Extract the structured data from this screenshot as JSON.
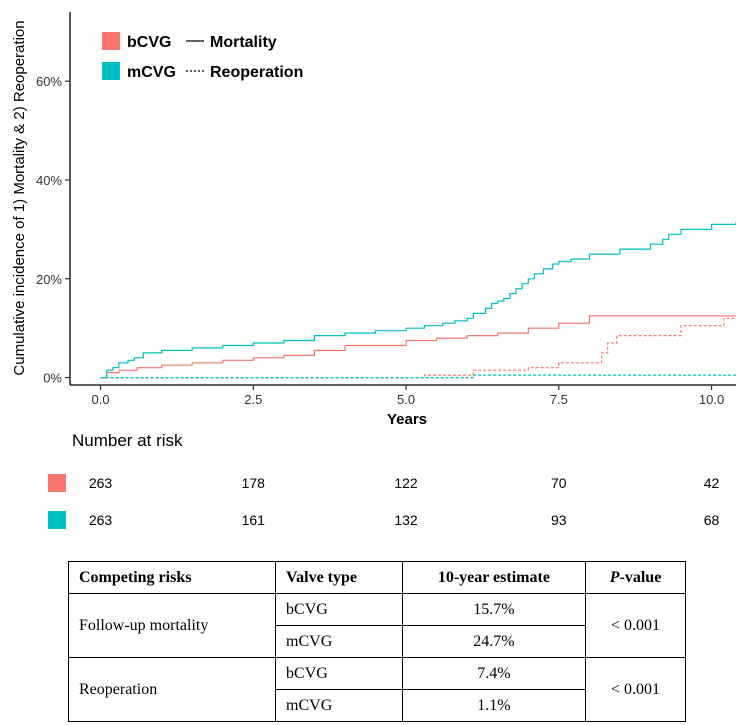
{
  "chart_data": {
    "type": "line",
    "ylabel": "Cumulative incidence of 1) Mortality & 2) Reoperation",
    "xlabel": "Years",
    "xlim": [
      -0.5,
      10.4
    ],
    "ylim": [
      -1.5,
      74
    ],
    "x_ticks": [
      0.0,
      2.5,
      5.0,
      7.5,
      10.0
    ],
    "x_tick_labels": [
      "0.0",
      "2.5",
      "5.0",
      "7.5",
      "10.0"
    ],
    "y_ticks": [
      0,
      20,
      40,
      60
    ],
    "y_tick_labels": [
      "0%",
      "20%",
      "40%",
      "60%"
    ],
    "grid": false,
    "legend_position": "top-left",
    "legend": {
      "groups": [
        {
          "label": "bCVG",
          "color": "#F8766D"
        },
        {
          "label": "mCVG",
          "color": "#00BFC4"
        }
      ],
      "linetypes": [
        {
          "label": "Mortality",
          "style": "solid"
        },
        {
          "label": "Reoperation",
          "style": "dashed"
        }
      ]
    },
    "series": [
      {
        "group": "bCVG",
        "endpoint": "Mortality",
        "color": "#F8766D",
        "style": "solid",
        "x": [
          0.0,
          0.1,
          0.3,
          0.6,
          1.0,
          1.5,
          2.0,
          2.5,
          3.0,
          3.5,
          4.0,
          5.0,
          5.5,
          6.0,
          6.5,
          7.0,
          7.5,
          8.0,
          10.4
        ],
        "y": [
          0.0,
          1.0,
          1.5,
          2.0,
          2.5,
          3.0,
          3.5,
          4.0,
          4.5,
          5.5,
          6.5,
          7.5,
          8.0,
          8.5,
          9.0,
          10.0,
          11.0,
          12.5,
          12.5
        ]
      },
      {
        "group": "mCVG",
        "endpoint": "Mortality",
        "color": "#00BFC4",
        "style": "solid",
        "x": [
          0.0,
          0.1,
          0.2,
          0.3,
          0.45,
          0.55,
          0.7,
          1.0,
          1.5,
          2.0,
          2.5,
          3.0,
          3.5,
          4.0,
          4.5,
          5.0,
          5.3,
          5.6,
          5.8,
          6.0,
          6.1,
          6.3,
          6.4,
          6.5,
          6.6,
          6.7,
          6.8,
          6.9,
          7.0,
          7.1,
          7.25,
          7.4,
          7.5,
          7.7,
          8.0,
          8.5,
          9.0,
          9.2,
          9.3,
          9.5,
          10.0,
          10.4
        ],
        "y": [
          0.0,
          1.5,
          2.0,
          3.0,
          3.5,
          4.0,
          5.0,
          5.5,
          6.0,
          6.5,
          7.0,
          7.5,
          8.5,
          9.0,
          9.5,
          10.0,
          10.5,
          11.0,
          11.5,
          12.0,
          13.0,
          14.0,
          15.0,
          15.5,
          16.0,
          17.0,
          18.0,
          19.0,
          20.0,
          21.0,
          22.0,
          23.0,
          23.5,
          24.0,
          25.0,
          26.0,
          27.0,
          28.0,
          29.0,
          30.0,
          31.0,
          31.5
        ]
      },
      {
        "group": "bCVG",
        "endpoint": "Reoperation",
        "color": "#F8766D",
        "style": "dashed",
        "x": [
          0.0,
          5.3,
          6.1,
          7.0,
          7.5,
          8.0,
          8.2,
          8.3,
          8.45,
          8.55,
          9.5,
          9.8,
          10.2,
          10.4
        ],
        "y": [
          0.0,
          0.5,
          1.5,
          2.0,
          3.0,
          3.0,
          5.0,
          7.0,
          8.5,
          8.5,
          10.5,
          10.5,
          12.0,
          12.0
        ]
      },
      {
        "group": "mCVG",
        "endpoint": "Reoperation",
        "color": "#00BFC4",
        "style": "dashed",
        "x": [
          0.0,
          6.1,
          10.4
        ],
        "y": [
          0.0,
          0.5,
          0.8
        ]
      }
    ],
    "number_at_risk": {
      "title": "Number at risk",
      "rows": [
        {
          "group": "bCVG",
          "color": "#F8766D",
          "values": [
            "263",
            "178",
            "122",
            "70",
            "42"
          ]
        },
        {
          "group": "mCVG",
          "color": "#00BFC4",
          "values": [
            "263",
            "161",
            "132",
            "93",
            "68"
          ]
        }
      ]
    }
  },
  "table": {
    "headers": {
      "competing_risks": "Competing risks",
      "valve_type": "Valve type",
      "estimate": "10-year estimate",
      "p_value_italic": "P",
      "p_value_rest": "-value"
    },
    "rows": [
      {
        "risk": "Follow-up mortality",
        "p_value": "< 0.001",
        "items": [
          {
            "valve": "bCVG",
            "estimate": "15.7%"
          },
          {
            "valve": "mCVG",
            "estimate": "24.7%"
          }
        ]
      },
      {
        "risk": "Reoperation",
        "p_value": "< 0.001",
        "items": [
          {
            "valve": "bCVG",
            "estimate": "7.4%"
          },
          {
            "valve": "mCVG",
            "estimate": "1.1%"
          }
        ]
      }
    ]
  }
}
